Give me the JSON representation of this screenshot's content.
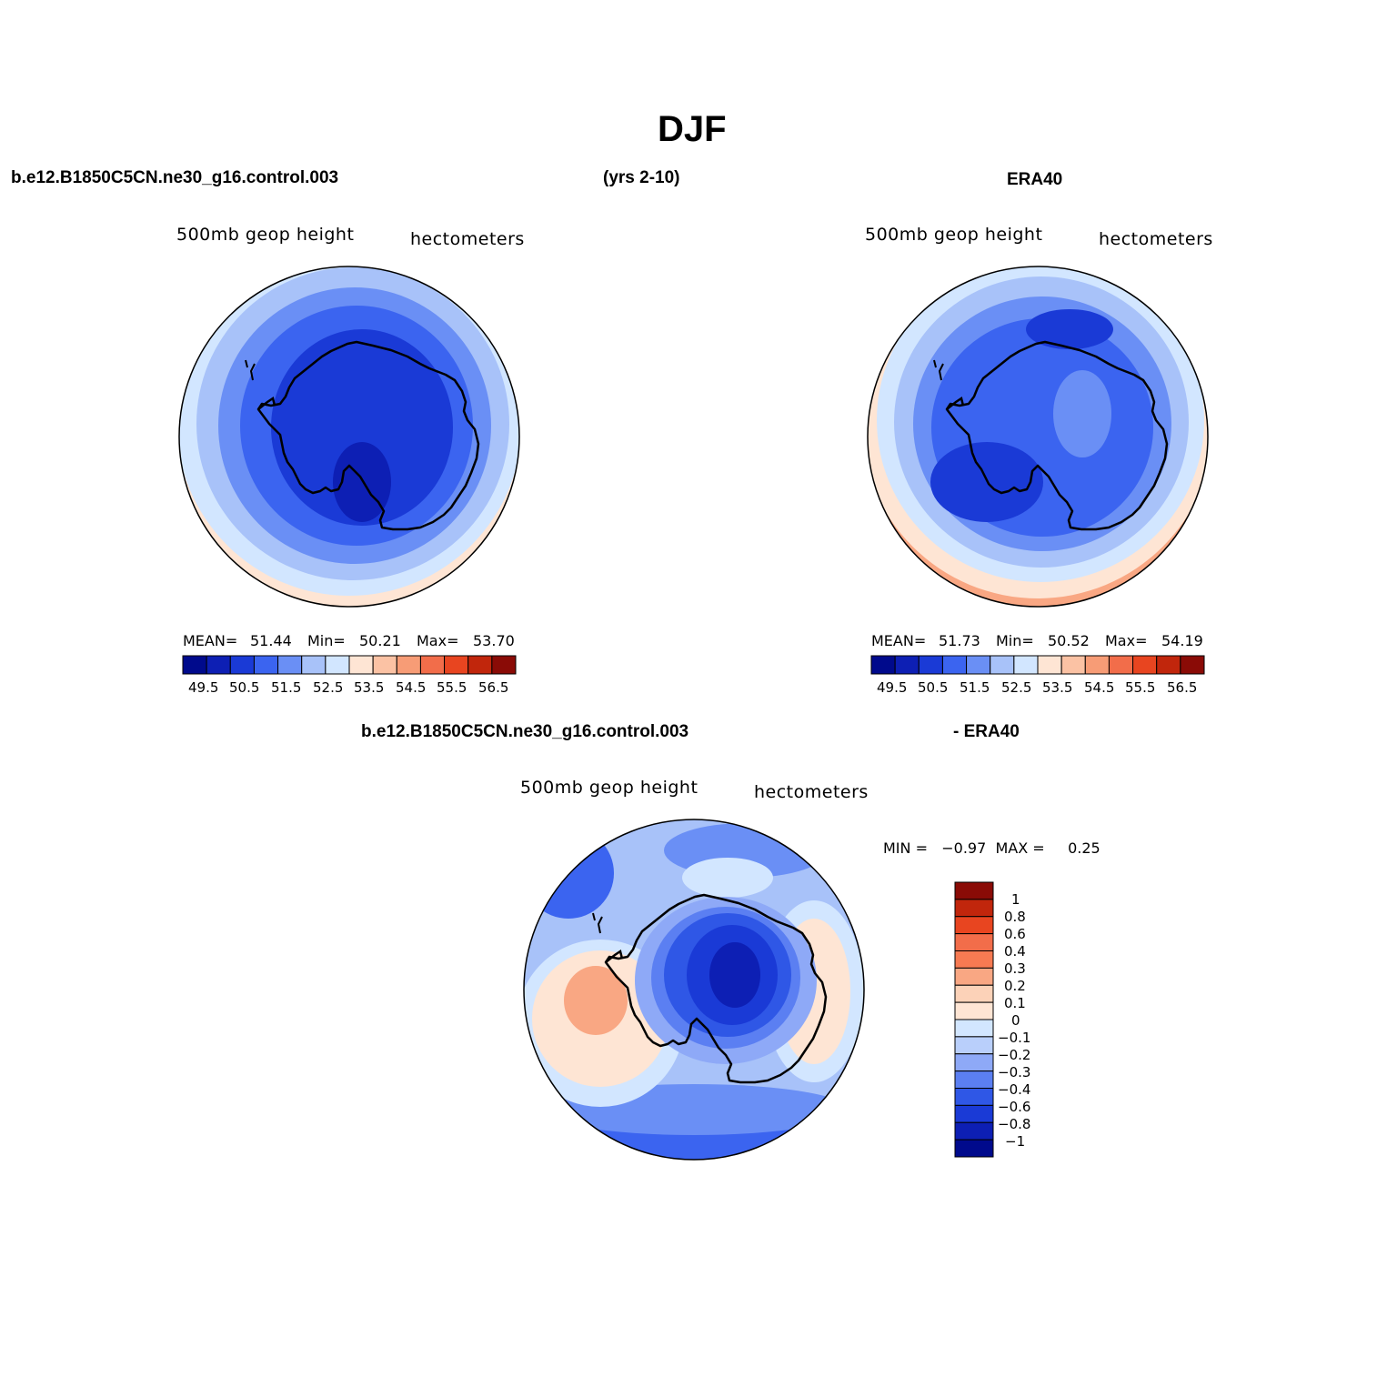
{
  "title": "DJF",
  "header": {
    "case": "b.e12.B1850C5CN.ne30_g16.control.003",
    "years": "(yrs 2-10)",
    "obs": "ERA40"
  },
  "panels": [
    {
      "id": "model",
      "left_label": "500mb  geop  height",
      "right_label": "hectometers",
      "stats": {
        "mean_label": "MEAN=",
        "mean": "51.44",
        "min_label": "Min=",
        "min": "50.21",
        "max_label": "Max=",
        "max": "53.70"
      }
    },
    {
      "id": "obs",
      "left_label": "500mb  geop  height",
      "right_label": "hectometers",
      "stats": {
        "mean_label": "MEAN=",
        "mean": "51.73",
        "min_label": "Min=",
        "min": "50.52",
        "max_label": "Max=",
        "max": "54.19"
      }
    },
    {
      "id": "diff",
      "case": "b.e12.B1850C5CN.ne30_g16.control.003",
      "minus": "- ERA40",
      "left_label": "500mb  geop  height",
      "right_label": "hectometers",
      "minmax": "MIN =   −0.97  MAX =     0.25"
    }
  ],
  "colorbar_abs": {
    "tick_labels": [
      "49.5",
      "50.5",
      "51.5",
      "52.5",
      "53.5",
      "54.5",
      "55.5",
      "56.5"
    ],
    "colors": [
      "#000a8c",
      "#0d1fb4",
      "#1a3ad6",
      "#3b64f0",
      "#6a8ff5",
      "#a8c2f9",
      "#d2e6ff",
      "#fee5d4",
      "#fbc2a4",
      "#f79c76",
      "#f26d4a",
      "#e84520",
      "#c1260c",
      "#8a0b06"
    ]
  },
  "colorbar_diff": {
    "tick_labels": [
      "1",
      "0.8",
      "0.6",
      "0.4",
      "0.3",
      "0.2",
      "0.1",
      "0",
      "−0.1",
      "−0.2",
      "−0.3",
      "−0.4",
      "−0.6",
      "−0.8",
      "−1"
    ],
    "colors": [
      "#8a0b06",
      "#c1260c",
      "#e84520",
      "#f26d4a",
      "#f77a52",
      "#f9a783",
      "#fcd2b8",
      "#fee5d4",
      "#d2e6ff",
      "#b9cffb",
      "#8ea9f7",
      "#5b7ff2",
      "#2f57e6",
      "#1a3ad6",
      "#0d1fb4",
      "#000a8c"
    ]
  }
}
